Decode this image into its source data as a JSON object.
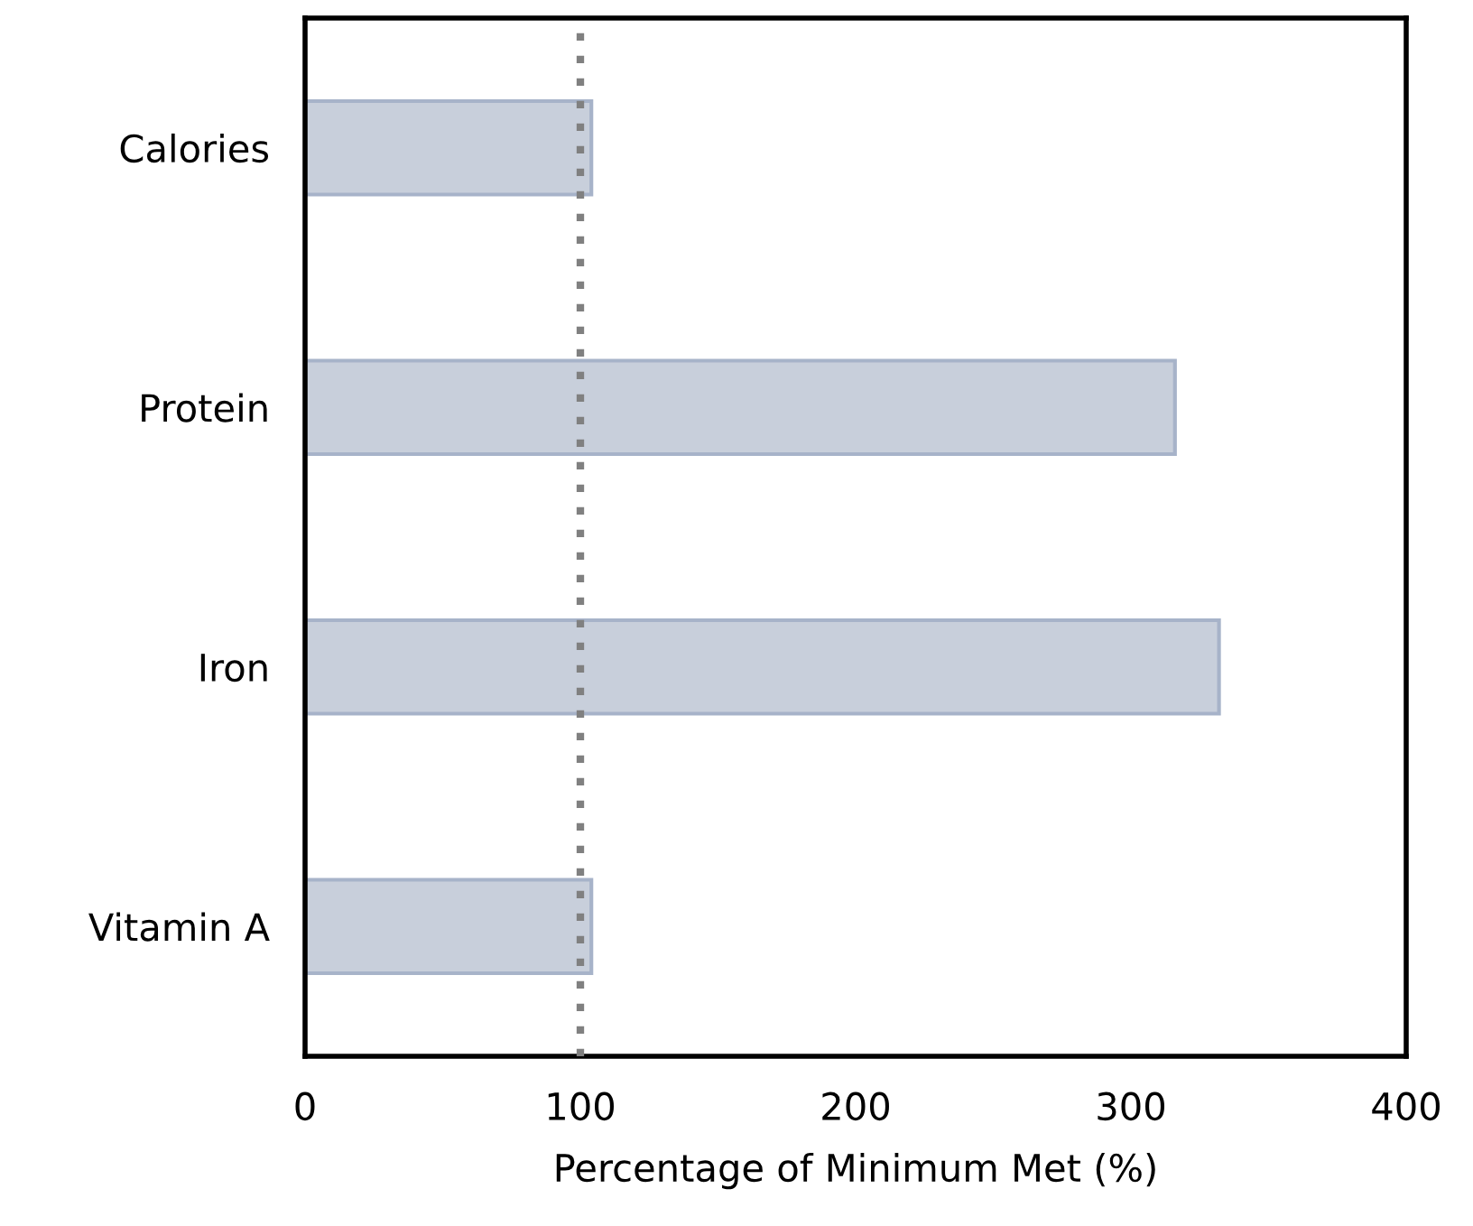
{
  "chart_data": {
    "type": "bar",
    "orientation": "horizontal",
    "xlabel": "Percentage of Minimum Met (%)",
    "categories": [
      "Calories",
      "Protein",
      "Iron",
      "Vitamin A"
    ],
    "values": [
      104,
      316,
      332,
      104
    ],
    "color": "#c8cfdb",
    "xlim": [
      0,
      400
    ],
    "xticks": [
      0,
      100,
      200,
      300,
      400
    ],
    "grid": false,
    "legend": false,
    "ref_lines": [
      {
        "axis": "x",
        "value": 100,
        "color": "#808080",
        "line_style": "dotted"
      }
    ]
  }
}
